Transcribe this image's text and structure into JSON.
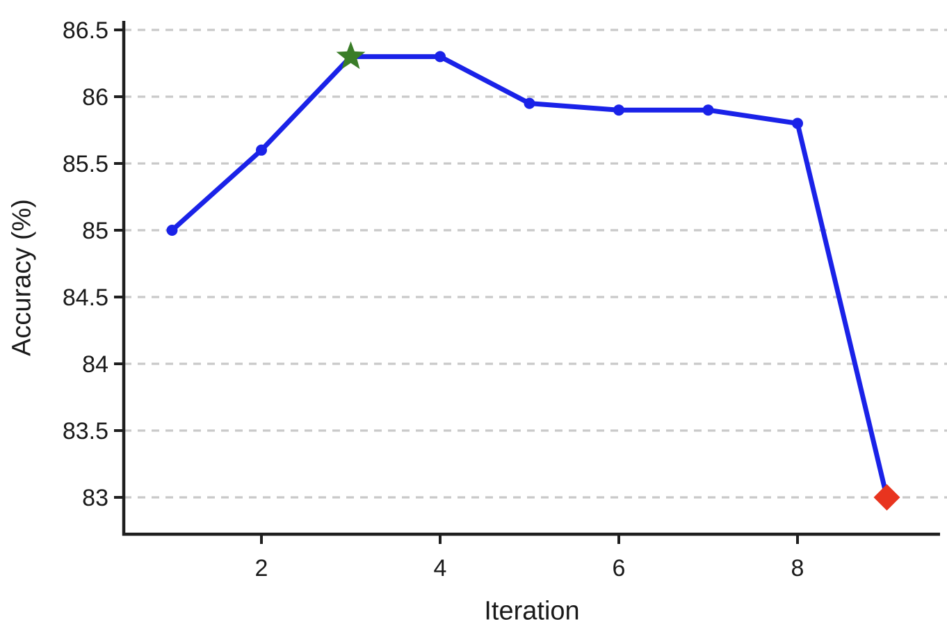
{
  "figure": {
    "background_color": "#ffffff",
    "text_color": "#1a1a1a",
    "axis_color": "#1f1f1f",
    "grid_color": "#c9c9c9"
  },
  "chart_data": {
    "type": "line",
    "title": "",
    "xlabel": "Iteration",
    "ylabel": "Accuracy (%)",
    "x": [
      1,
      2,
      3,
      4,
      5,
      6,
      7,
      8,
      9
    ],
    "series": [
      {
        "name": "accuracy",
        "color": "#1a22e8",
        "line_width": 7,
        "marker": "circle",
        "marker_radius": 8,
        "values": [
          85.0,
          85.6,
          86.3,
          86.3,
          85.95,
          85.9,
          85.9,
          85.8,
          83.0
        ]
      }
    ],
    "special_markers": [
      {
        "x": 3,
        "y": 86.3,
        "shape": "star",
        "color": "#3a7d28",
        "size": 22,
        "name": "peak-star-marker"
      },
      {
        "x": 9,
        "y": 83.0,
        "shape": "diamond",
        "color": "#e8341f",
        "size": 19,
        "name": "final-diamond-marker"
      }
    ],
    "x_ticks": [
      2,
      4,
      6,
      8
    ],
    "y_ticks": [
      83,
      83.5,
      84,
      84.5,
      85,
      85.5,
      86,
      86.5
    ],
    "xlim": [
      0.46,
      9.67
    ],
    "ylim": [
      82.72,
      86.57
    ],
    "grid": "horizontal-dashed",
    "legend_position": "none"
  }
}
